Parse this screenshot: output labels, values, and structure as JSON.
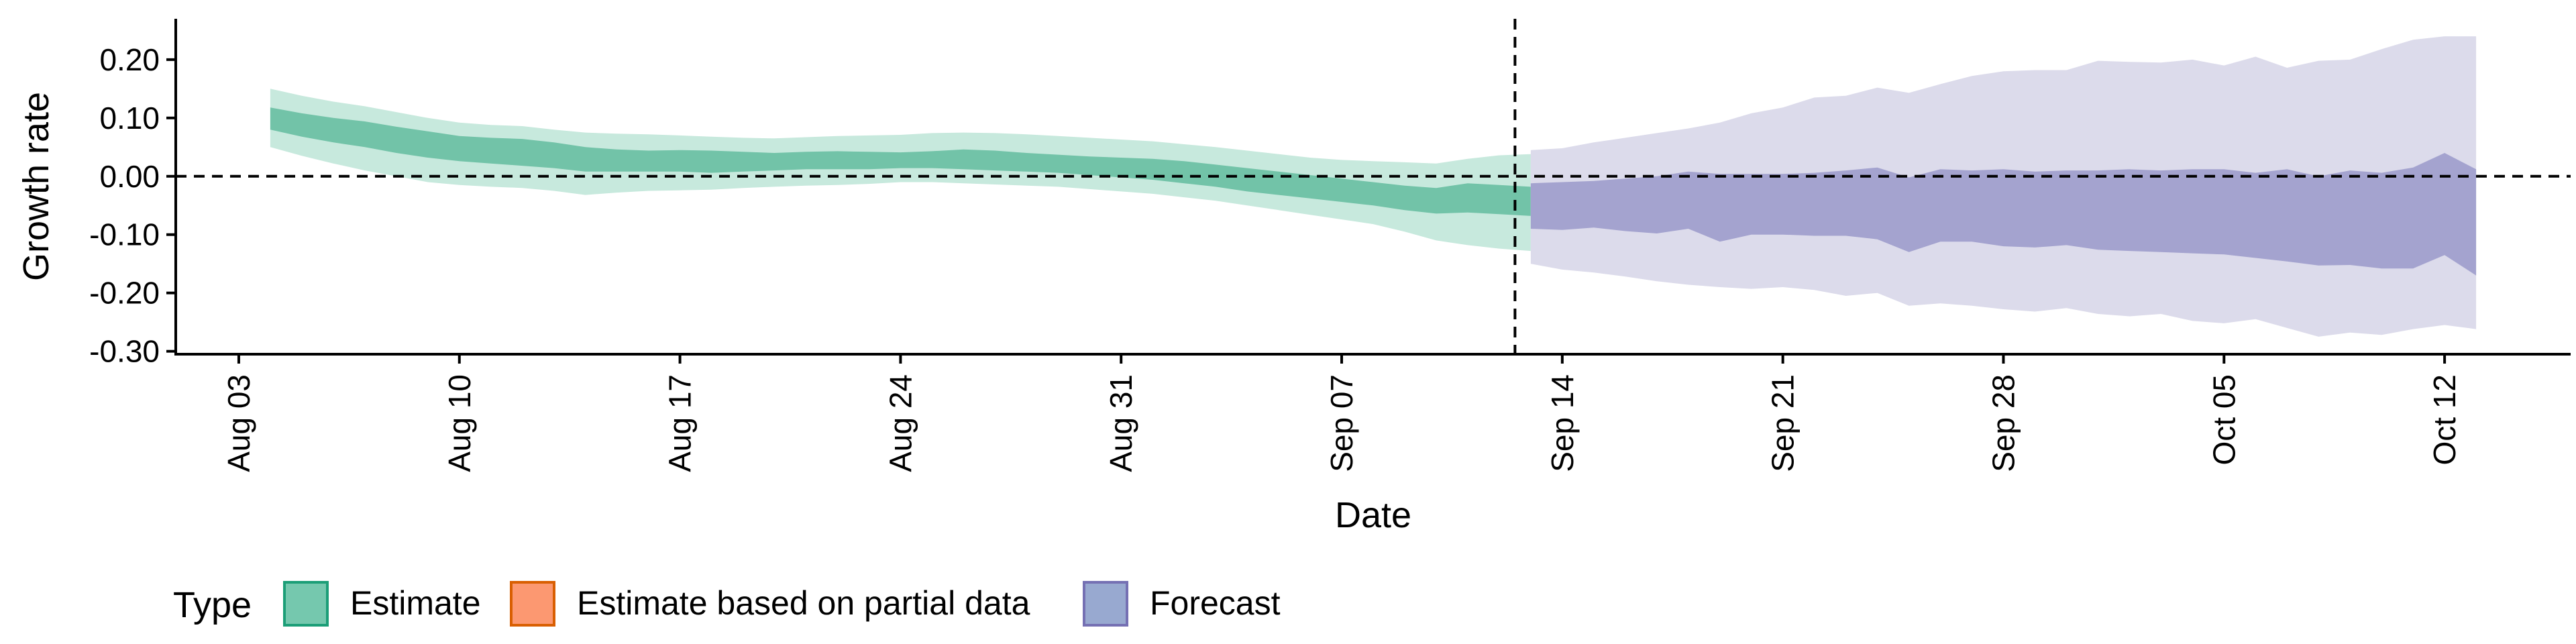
{
  "chart_data": {
    "type": "area",
    "xlabel": "Date",
    "ylabel": "Growth rate",
    "y_ticks": [
      "0.20",
      "0.10",
      "0.00",
      "-0.10",
      "-0.20",
      "-0.30"
    ],
    "y_tick_values": [
      0.2,
      0.1,
      0.0,
      -0.1,
      -0.2,
      -0.3
    ],
    "ylim": [
      -0.305,
      0.27
    ],
    "x_ticks": [
      "Aug 03",
      "Aug 10",
      "Aug 17",
      "Aug 24",
      "Aug 31",
      "Sep 07",
      "Sep 14",
      "Sep 21",
      "Sep 28",
      "Oct 05",
      "Oct 12"
    ],
    "x_tick_values": [
      "2020-08-03",
      "2020-08-10",
      "2020-08-17",
      "2020-08-24",
      "2020-08-31",
      "2020-09-07",
      "2020-09-14",
      "2020-09-21",
      "2020-09-28",
      "2020-10-05",
      "2020-10-12"
    ],
    "xlim": [
      "2020-08-01",
      "2020-10-16"
    ],
    "forecast_start": "2020-09-13",
    "reference_line_y": 0,
    "legend": {
      "title": "Type",
      "position": "bottom-left",
      "entries": [
        {
          "label": "Estimate",
          "fill": "#66c2a5",
          "stroke": "#1b9e77"
        },
        {
          "label": "Estimate based on partial data",
          "fill": "#fc8d62",
          "stroke": "#d95f02"
        },
        {
          "label": "Forecast",
          "fill": "#8da0cb",
          "stroke": "#7570b3"
        }
      ]
    },
    "series": [
      {
        "name": "Estimate",
        "color_outer": "#c7e9dd",
        "color_inner": "#72c3a8",
        "x": [
          "2020-08-04",
          "2020-08-05",
          "2020-08-06",
          "2020-08-07",
          "2020-08-08",
          "2020-08-09",
          "2020-08-10",
          "2020-08-11",
          "2020-08-12",
          "2020-08-13",
          "2020-08-14",
          "2020-08-15",
          "2020-08-16",
          "2020-08-17",
          "2020-08-18",
          "2020-08-19",
          "2020-08-20",
          "2020-08-21",
          "2020-08-22",
          "2020-08-23",
          "2020-08-24",
          "2020-08-25",
          "2020-08-26",
          "2020-08-27",
          "2020-08-28",
          "2020-08-29",
          "2020-08-30",
          "2020-08-31",
          "2020-09-01",
          "2020-09-02",
          "2020-09-03",
          "2020-09-04",
          "2020-09-05",
          "2020-09-06",
          "2020-09-07",
          "2020-09-08",
          "2020-09-09",
          "2020-09-10",
          "2020-09-11",
          "2020-09-12",
          "2020-09-13"
        ],
        "lower_90": [
          0.05,
          0.035,
          0.022,
          0.01,
          0.0,
          -0.01,
          -0.015,
          -0.018,
          -0.02,
          -0.025,
          -0.032,
          -0.028,
          -0.025,
          -0.024,
          -0.023,
          -0.02,
          -0.018,
          -0.016,
          -0.015,
          -0.013,
          -0.01,
          -0.01,
          -0.012,
          -0.014,
          -0.016,
          -0.018,
          -0.022,
          -0.026,
          -0.03,
          -0.036,
          -0.042,
          -0.05,
          -0.058,
          -0.066,
          -0.074,
          -0.082,
          -0.095,
          -0.11,
          -0.118,
          -0.124,
          -0.128
        ],
        "lower_50": [
          0.08,
          0.068,
          0.058,
          0.05,
          0.04,
          0.032,
          0.026,
          0.022,
          0.018,
          0.014,
          0.008,
          0.008,
          0.008,
          0.008,
          0.006,
          0.008,
          0.01,
          0.012,
          0.012,
          0.012,
          0.014,
          0.014,
          0.012,
          0.01,
          0.008,
          0.006,
          0.002,
          -0.002,
          -0.006,
          -0.012,
          -0.018,
          -0.026,
          -0.032,
          -0.038,
          -0.044,
          -0.05,
          -0.058,
          -0.064,
          -0.062,
          -0.065,
          -0.068
        ],
        "upper_50": [
          0.118,
          0.108,
          0.1,
          0.094,
          0.085,
          0.077,
          0.069,
          0.066,
          0.064,
          0.058,
          0.05,
          0.046,
          0.044,
          0.045,
          0.044,
          0.042,
          0.04,
          0.042,
          0.043,
          0.042,
          0.041,
          0.043,
          0.046,
          0.044,
          0.04,
          0.037,
          0.034,
          0.032,
          0.03,
          0.026,
          0.02,
          0.014,
          0.008,
          0.002,
          -0.004,
          -0.01,
          -0.016,
          -0.02,
          -0.012,
          -0.015,
          -0.018
        ],
        "upper_90": [
          0.15,
          0.138,
          0.128,
          0.12,
          0.11,
          0.1,
          0.092,
          0.088,
          0.086,
          0.08,
          0.075,
          0.073,
          0.072,
          0.07,
          0.068,
          0.066,
          0.065,
          0.067,
          0.069,
          0.07,
          0.071,
          0.074,
          0.075,
          0.074,
          0.072,
          0.069,
          0.066,
          0.063,
          0.06,
          0.055,
          0.05,
          0.044,
          0.038,
          0.032,
          0.028,
          0.026,
          0.024,
          0.022,
          0.03,
          0.036,
          0.038
        ]
      },
      {
        "name": "Forecast",
        "color_outer": "#dcdbeb",
        "color_inner": "#a4a3cf",
        "x": [
          "2020-09-13",
          "2020-09-14",
          "2020-09-15",
          "2020-09-16",
          "2020-09-17",
          "2020-09-18",
          "2020-09-19",
          "2020-09-20",
          "2020-09-21",
          "2020-09-22",
          "2020-09-23",
          "2020-09-24",
          "2020-09-25",
          "2020-09-26",
          "2020-09-27",
          "2020-09-28",
          "2020-09-29",
          "2020-09-30",
          "2020-10-01",
          "2020-10-02",
          "2020-10-03",
          "2020-10-04",
          "2020-10-05",
          "2020-10-06",
          "2020-10-07",
          "2020-10-08",
          "2020-10-09",
          "2020-10-10",
          "2020-10-11",
          "2020-10-12",
          "2020-10-13"
        ],
        "lower_90": [
          -0.15,
          -0.16,
          -0.165,
          -0.172,
          -0.18,
          -0.186,
          -0.19,
          -0.193,
          -0.19,
          -0.195,
          -0.205,
          -0.2,
          -0.222,
          -0.218,
          -0.222,
          -0.228,
          -0.232,
          -0.226,
          -0.236,
          -0.24,
          -0.236,
          -0.248,
          -0.252,
          -0.245,
          -0.26,
          -0.275,
          -0.268,
          -0.272,
          -0.262,
          -0.255,
          -0.262
        ],
        "lower_50": [
          -0.09,
          -0.092,
          -0.088,
          -0.094,
          -0.098,
          -0.09,
          -0.112,
          -0.1,
          -0.1,
          -0.102,
          -0.102,
          -0.108,
          -0.13,
          -0.112,
          -0.112,
          -0.12,
          -0.122,
          -0.118,
          -0.126,
          -0.128,
          -0.13,
          -0.132,
          -0.134,
          -0.14,
          -0.146,
          -0.153,
          -0.152,
          -0.158,
          -0.158,
          -0.135,
          -0.17
        ],
        "upper_50": [
          -0.012,
          -0.01,
          -0.008,
          -0.004,
          0.0,
          0.008,
          0.004,
          0.004,
          0.004,
          0.006,
          0.01,
          0.015,
          -0.002,
          0.012,
          0.01,
          0.012,
          0.008,
          0.01,
          0.01,
          0.012,
          0.01,
          0.012,
          0.012,
          0.006,
          0.012,
          0.0,
          0.01,
          0.006,
          0.015,
          0.04,
          0.012
        ],
        "upper_90": [
          0.045,
          0.048,
          0.058,
          0.066,
          0.074,
          0.082,
          0.092,
          0.108,
          0.118,
          0.135,
          0.138,
          0.152,
          0.143,
          0.158,
          0.172,
          0.18,
          0.182,
          0.182,
          0.198,
          0.196,
          0.195,
          0.2,
          0.19,
          0.205,
          0.186,
          0.198,
          0.2,
          0.218,
          0.234,
          0.24,
          0.24
        ]
      }
    ]
  }
}
